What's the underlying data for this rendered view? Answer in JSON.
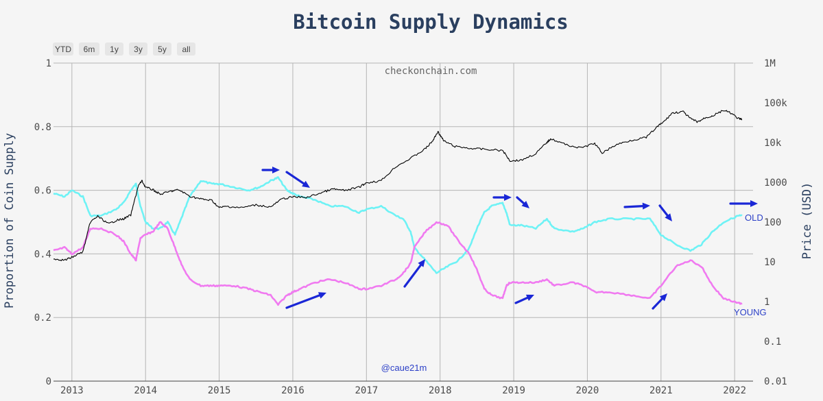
{
  "range_selector": [
    "YTD",
    "6m",
    "1y",
    "3y",
    "5y",
    "all"
  ],
  "watermark": "checkonchain.com",
  "handle": "@caue21m",
  "colors": {
    "old": "#6ef2f5",
    "young": "#f07af0",
    "price": "#000000",
    "arrow": "#1a27d6",
    "grid": "#b5b5b5"
  },
  "chart_data": {
    "type": "line",
    "title": "Bitcoin Supply Dynamics",
    "ylabel": "Proportion of Coin Supply",
    "y2label": "Price (USD)",
    "x_ticks": [
      "2013",
      "2014",
      "2015",
      "2016",
      "2017",
      "2018",
      "2019",
      "2020",
      "2021",
      "2022"
    ],
    "y_ticks": [
      "0",
      "0.2",
      "0.4",
      "0.6",
      "0.8",
      "1"
    ],
    "y2_ticks": [
      "0.01",
      "0.1",
      "1",
      "10",
      "100",
      "1000",
      "10k",
      "100k",
      "1M"
    ],
    "ylim": [
      0,
      1
    ],
    "y2lim_log10": [
      -2,
      6
    ],
    "xlim": [
      2012.75,
      2022.25
    ],
    "series": [
      {
        "name": "OLD",
        "axis": "left",
        "points": [
          [
            2012.75,
            0.59
          ],
          [
            2012.9,
            0.58
          ],
          [
            2013.0,
            0.6
          ],
          [
            2013.15,
            0.58
          ],
          [
            2013.25,
            0.52
          ],
          [
            2013.4,
            0.52
          ],
          [
            2013.6,
            0.54
          ],
          [
            2013.7,
            0.56
          ],
          [
            2013.8,
            0.6
          ],
          [
            2013.87,
            0.62
          ],
          [
            2013.93,
            0.55
          ],
          [
            2014.0,
            0.5
          ],
          [
            2014.1,
            0.48
          ],
          [
            2014.2,
            0.48
          ],
          [
            2014.3,
            0.5
          ],
          [
            2014.4,
            0.46
          ],
          [
            2014.5,
            0.52
          ],
          [
            2014.6,
            0.58
          ],
          [
            2014.75,
            0.63
          ],
          [
            2014.9,
            0.62
          ],
          [
            2015.0,
            0.62
          ],
          [
            2015.2,
            0.61
          ],
          [
            2015.4,
            0.6
          ],
          [
            2015.55,
            0.61
          ],
          [
            2015.7,
            0.63
          ],
          [
            2015.8,
            0.64
          ],
          [
            2015.92,
            0.6
          ],
          [
            2016.0,
            0.59
          ],
          [
            2016.1,
            0.58
          ],
          [
            2016.3,
            0.57
          ],
          [
            2016.5,
            0.55
          ],
          [
            2016.7,
            0.55
          ],
          [
            2016.9,
            0.53
          ],
          [
            2017.0,
            0.54
          ],
          [
            2017.2,
            0.55
          ],
          [
            2017.4,
            0.52
          ],
          [
            2017.5,
            0.51
          ],
          [
            2017.6,
            0.47
          ],
          [
            2017.65,
            0.42
          ],
          [
            2017.8,
            0.38
          ],
          [
            2017.95,
            0.34
          ],
          [
            2018.1,
            0.36
          ],
          [
            2018.25,
            0.38
          ],
          [
            2018.4,
            0.42
          ],
          [
            2018.5,
            0.48
          ],
          [
            2018.6,
            0.53
          ],
          [
            2018.7,
            0.55
          ],
          [
            2018.85,
            0.56
          ],
          [
            2018.9,
            0.53
          ],
          [
            2018.95,
            0.49
          ],
          [
            2019.1,
            0.49
          ],
          [
            2019.3,
            0.48
          ],
          [
            2019.45,
            0.51
          ],
          [
            2019.55,
            0.48
          ],
          [
            2019.8,
            0.47
          ],
          [
            2019.95,
            0.48
          ],
          [
            2020.1,
            0.5
          ],
          [
            2020.3,
            0.51
          ],
          [
            2020.6,
            0.51
          ],
          [
            2020.85,
            0.51
          ],
          [
            2021.0,
            0.46
          ],
          [
            2021.2,
            0.43
          ],
          [
            2021.4,
            0.41
          ],
          [
            2021.55,
            0.43
          ],
          [
            2021.7,
            0.47
          ],
          [
            2021.85,
            0.5
          ],
          [
            2022.05,
            0.52
          ],
          [
            2022.1,
            0.52
          ]
        ]
      },
      {
        "name": "YOUNG",
        "axis": "left",
        "points": [
          [
            2012.75,
            0.41
          ],
          [
            2012.9,
            0.42
          ],
          [
            2013.0,
            0.4
          ],
          [
            2013.15,
            0.42
          ],
          [
            2013.25,
            0.48
          ],
          [
            2013.4,
            0.48
          ],
          [
            2013.6,
            0.46
          ],
          [
            2013.7,
            0.44
          ],
          [
            2013.8,
            0.4
          ],
          [
            2013.87,
            0.38
          ],
          [
            2013.93,
            0.45
          ],
          [
            2014.0,
            0.46
          ],
          [
            2014.1,
            0.47
          ],
          [
            2014.2,
            0.5
          ],
          [
            2014.3,
            0.48
          ],
          [
            2014.4,
            0.42
          ],
          [
            2014.5,
            0.36
          ],
          [
            2014.6,
            0.32
          ],
          [
            2014.75,
            0.3
          ],
          [
            2014.9,
            0.3
          ],
          [
            2015.0,
            0.3
          ],
          [
            2015.2,
            0.3
          ],
          [
            2015.4,
            0.29
          ],
          [
            2015.55,
            0.28
          ],
          [
            2015.7,
            0.27
          ],
          [
            2015.8,
            0.24
          ],
          [
            2015.92,
            0.27
          ],
          [
            2016.0,
            0.28
          ],
          [
            2016.1,
            0.29
          ],
          [
            2016.3,
            0.31
          ],
          [
            2016.5,
            0.32
          ],
          [
            2016.7,
            0.31
          ],
          [
            2016.9,
            0.29
          ],
          [
            2017.0,
            0.29
          ],
          [
            2017.2,
            0.3
          ],
          [
            2017.4,
            0.32
          ],
          [
            2017.5,
            0.34
          ],
          [
            2017.6,
            0.37
          ],
          [
            2017.65,
            0.42
          ],
          [
            2017.8,
            0.47
          ],
          [
            2017.95,
            0.5
          ],
          [
            2018.1,
            0.49
          ],
          [
            2018.25,
            0.44
          ],
          [
            2018.4,
            0.4
          ],
          [
            2018.5,
            0.35
          ],
          [
            2018.6,
            0.29
          ],
          [
            2018.7,
            0.27
          ],
          [
            2018.85,
            0.26
          ],
          [
            2018.9,
            0.3
          ],
          [
            2018.95,
            0.31
          ],
          [
            2019.1,
            0.31
          ],
          [
            2019.3,
            0.31
          ],
          [
            2019.45,
            0.32
          ],
          [
            2019.55,
            0.3
          ],
          [
            2019.8,
            0.31
          ],
          [
            2019.95,
            0.3
          ],
          [
            2020.1,
            0.28
          ],
          [
            2020.3,
            0.28
          ],
          [
            2020.6,
            0.27
          ],
          [
            2020.85,
            0.26
          ],
          [
            2021.0,
            0.3
          ],
          [
            2021.2,
            0.36
          ],
          [
            2021.4,
            0.38
          ],
          [
            2021.55,
            0.36
          ],
          [
            2021.7,
            0.3
          ],
          [
            2021.85,
            0.26
          ],
          [
            2022.05,
            0.245
          ],
          [
            2022.1,
            0.245
          ]
        ]
      },
      {
        "name": "Price",
        "axis": "right",
        "points": [
          [
            2012.75,
            12
          ],
          [
            2012.9,
            11
          ],
          [
            2013.0,
            13
          ],
          [
            2013.15,
            18
          ],
          [
            2013.25,
            100
          ],
          [
            2013.35,
            140
          ],
          [
            2013.5,
            90
          ],
          [
            2013.6,
            110
          ],
          [
            2013.7,
            120
          ],
          [
            2013.8,
            150
          ],
          [
            2013.9,
            800
          ],
          [
            2013.95,
            1100
          ],
          [
            2014.0,
            750
          ],
          [
            2014.1,
            650
          ],
          [
            2014.2,
            500
          ],
          [
            2014.35,
            600
          ],
          [
            2014.45,
            650
          ],
          [
            2014.6,
            450
          ],
          [
            2014.75,
            380
          ],
          [
            2014.9,
            350
          ],
          [
            2015.0,
            230
          ],
          [
            2015.1,
            250
          ],
          [
            2015.3,
            230
          ],
          [
            2015.5,
            270
          ],
          [
            2015.7,
            240
          ],
          [
            2015.85,
            380
          ],
          [
            2016.0,
            430
          ],
          [
            2016.2,
            420
          ],
          [
            2016.4,
            560
          ],
          [
            2016.55,
            680
          ],
          [
            2016.7,
            620
          ],
          [
            2016.9,
            750
          ],
          [
            2017.0,
            980
          ],
          [
            2017.2,
            1100
          ],
          [
            2017.4,
            2500
          ],
          [
            2017.6,
            4000
          ],
          [
            2017.8,
            7000
          ],
          [
            2017.9,
            11000
          ],
          [
            2017.97,
            19000
          ],
          [
            2018.05,
            11000
          ],
          [
            2018.2,
            8000
          ],
          [
            2018.4,
            7200
          ],
          [
            2018.6,
            6800
          ],
          [
            2018.85,
            6300
          ],
          [
            2018.95,
            3500
          ],
          [
            2019.1,
            3600
          ],
          [
            2019.3,
            5300
          ],
          [
            2019.45,
            10000
          ],
          [
            2019.5,
            12500
          ],
          [
            2019.7,
            9000
          ],
          [
            2019.9,
            7300
          ],
          [
            2020.1,
            9500
          ],
          [
            2020.2,
            5500
          ],
          [
            2020.4,
            9000
          ],
          [
            2020.6,
            11500
          ],
          [
            2020.8,
            13500
          ],
          [
            2020.95,
            25000
          ],
          [
            2021.05,
            35000
          ],
          [
            2021.15,
            55000
          ],
          [
            2021.3,
            60000
          ],
          [
            2021.4,
            40000
          ],
          [
            2021.5,
            33000
          ],
          [
            2021.6,
            42000
          ],
          [
            2021.7,
            47000
          ],
          [
            2021.85,
            65000
          ],
          [
            2021.95,
            55000
          ],
          [
            2022.05,
            40000
          ],
          [
            2022.1,
            38000
          ]
        ]
      }
    ],
    "annotations": [
      "OLD",
      "YOUNG"
    ]
  }
}
